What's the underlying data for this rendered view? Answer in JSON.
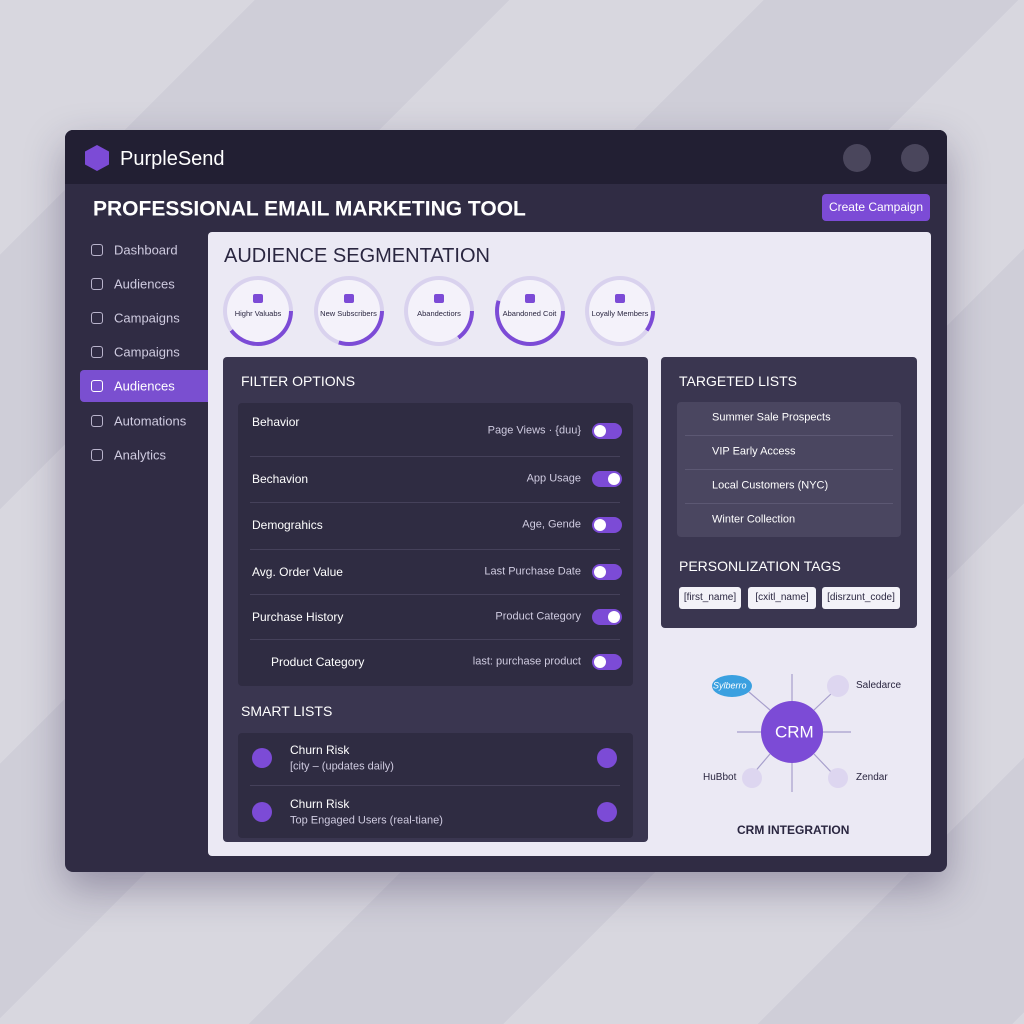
{
  "brand": "PurpleSend",
  "header": {
    "title": "PROFESSIONAL EMAIL MARKETING TOOL",
    "button": "Create Campaign"
  },
  "nav": {
    "items": [
      "Dashboard",
      "Audiences",
      "Campaigns",
      "Campaigns",
      "Audiences",
      "Automations",
      "Analytics"
    ],
    "active": 4
  },
  "segmentation": {
    "title": "AUDIENCE SEGMENTATION",
    "segments": [
      "Highr Valuabs",
      "New Subscribers",
      "Abandectiors",
      "Abandoned Coit",
      "Loyally Members"
    ]
  },
  "filters": {
    "title": "FILTER OPTIONS",
    "rows": [
      {
        "label": "Behavior",
        "value": "Page Views · {duu}",
        "on": false
      },
      {
        "label": "Bechavion",
        "value": "App Usage",
        "on": true
      },
      {
        "label": "Demograhics",
        "value": "Age, Gende",
        "on": false
      },
      {
        "label": "Avg. Order Value",
        "value": "Last Purchase Date",
        "on": false
      },
      {
        "label": "Purchase History",
        "value": "Product Category",
        "on": true
      },
      {
        "label": "Product Category",
        "value": "last: purchase product",
        "on": false
      }
    ]
  },
  "smart_lists": {
    "title": "SMART LISTS",
    "items": [
      {
        "name": "Churn Risk",
        "detail": "[city  – (updates daily)"
      },
      {
        "name": "Churn Risk",
        "detail": "Top Engaged Users (real-tiane)"
      }
    ]
  },
  "targeted_lists": {
    "title": "TARGETED LISTS",
    "items": [
      "Summer Sale Prospects",
      "VIP Early Access",
      "Local Customers (NYC)",
      "Winter Collection"
    ]
  },
  "personalization": {
    "title": "PERSONLIZATION TAGS",
    "tags": [
      "[first_name]",
      "[cxitl_name]",
      "[disrzunt_code]"
    ]
  },
  "crm": {
    "center": "CRM",
    "title": "CRM INTEGRATION",
    "nodes": [
      "Sylberro",
      "Saledarce",
      "HuBbot",
      "Zendar"
    ]
  }
}
